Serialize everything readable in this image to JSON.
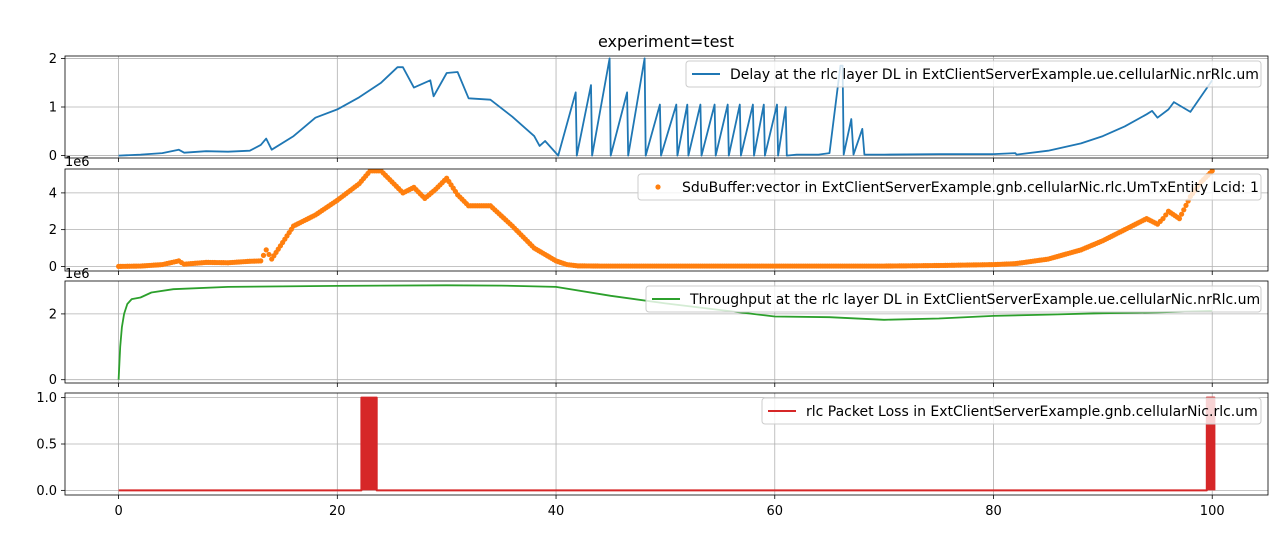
{
  "figure": {
    "title": "experiment=test"
  },
  "x_ticks": [
    "0",
    "20",
    "40",
    "60",
    "80",
    "100"
  ],
  "chart_data": [
    {
      "type": "line",
      "title": "experiment=test",
      "ylim": [
        -0.05,
        2.05
      ],
      "xlim": [
        -4.9,
        105.1
      ],
      "grid": true,
      "legend_position": "top-right",
      "y_ticks": [
        "0",
        "1",
        "2"
      ],
      "y_tick_values": [
        0,
        1,
        2
      ],
      "series": [
        {
          "name": "Delay at the rlc layer DL in ExtClientServerExample.ue.cellularNic.nrRlc.um",
          "color": "#1f77b4",
          "x": [
            0,
            2,
            4,
            5.5,
            6,
            8,
            10,
            12,
            13,
            13.5,
            14,
            16,
            18,
            20,
            22,
            24,
            25.5,
            26,
            27,
            28.5,
            28.8,
            30,
            31,
            32,
            34,
            36,
            38,
            38.5,
            39,
            40,
            40.2,
            41.8,
            41.9,
            43.2,
            43.3,
            44.9,
            45,
            46.5,
            46.6,
            48.1,
            48.2,
            49.5,
            49.6,
            51,
            51.1,
            52,
            52.1,
            53.2,
            53.3,
            54.5,
            54.6,
            55.7,
            55.8,
            56.8,
            56.9,
            58,
            58.1,
            59,
            59.1,
            60.2,
            60.3,
            61,
            61.1,
            62,
            64,
            65,
            66,
            66.2,
            66.3,
            67,
            67.2,
            68,
            68.2,
            70,
            75,
            80,
            82,
            82.1,
            85,
            88,
            90,
            92,
            94,
            94.5,
            95,
            96,
            96.5,
            98,
            100
          ],
          "y": [
            0,
            0.02,
            0.05,
            0.12,
            0.06,
            0.09,
            0.08,
            0.1,
            0.22,
            0.35,
            0.12,
            0.4,
            0.78,
            0.95,
            1.2,
            1.5,
            1.82,
            1.82,
            1.4,
            1.55,
            1.22,
            1.7,
            1.72,
            1.18,
            1.15,
            0.8,
            0.4,
            0.2,
            0.3,
            0.05,
            0,
            1.3,
            0,
            1.45,
            0,
            2.0,
            0,
            1.3,
            0,
            2.0,
            0,
            1.05,
            0,
            1.05,
            0,
            1.05,
            0,
            1.05,
            0,
            1.05,
            0,
            1.05,
            0,
            1.05,
            0,
            1.05,
            0,
            1.05,
            0,
            1.05,
            0,
            1.0,
            0,
            0.02,
            0.02,
            0.05,
            1.85,
            1.85,
            0.02,
            0.75,
            0.02,
            0.55,
            0.02,
            0.02,
            0.03,
            0.03,
            0.05,
            0.02,
            0.1,
            0.25,
            0.4,
            0.6,
            0.85,
            0.92,
            0.78,
            0.95,
            1.1,
            0.9,
            1.55
          ]
        }
      ]
    },
    {
      "type": "scatter",
      "offset_text": "1e6",
      "ylim": [
        -250000.0,
        5300000.0
      ],
      "xlim": [
        -4.9,
        105.1
      ],
      "grid": true,
      "legend_position": "top-right",
      "y_ticks": [
        "0",
        "2",
        "4"
      ],
      "y_tick_values": [
        0,
        2000000,
        4000000
      ],
      "series": [
        {
          "name": "SduBuffer:vector in ExtClientServerExample.gnb.cellularNic.rlc.UmTxEntity Lcid: 1",
          "color": "#ff7f0e",
          "x": [
            0,
            2,
            4,
            5.5,
            6,
            8,
            10,
            12,
            13,
            13.5,
            14,
            16,
            18,
            20,
            22,
            23,
            24,
            25,
            26,
            27,
            28,
            29,
            30,
            31,
            32,
            34,
            36,
            38,
            40,
            41,
            42,
            44,
            46,
            48,
            50,
            52,
            54,
            56,
            58,
            60,
            62,
            64,
            66,
            68,
            70,
            72,
            75,
            80,
            82,
            85,
            88,
            90,
            92,
            94,
            95,
            95.5,
            96,
            97,
            98,
            99,
            100
          ],
          "y": [
            0,
            20000,
            100000,
            300000,
            120000,
            220000,
            200000,
            280000,
            300000,
            900000,
            400000,
            2200000,
            2800000,
            3600000,
            4500000,
            5200000,
            5200000,
            4600000,
            4000000,
            4300000,
            3700000,
            4200000,
            4800000,
            3900000,
            3300000,
            3300000,
            2200000,
            1000000,
            300000,
            100000,
            30000,
            20000,
            20000,
            20000,
            20000,
            20000,
            20000,
            20000,
            20000,
            20000,
            20000,
            20000,
            20000,
            20000,
            20000,
            30000,
            50000,
            100000,
            150000,
            400000,
            900000,
            1400000,
            2000000,
            2600000,
            2300000,
            2600000,
            3000000,
            2600000,
            3800000,
            4600000,
            5200000
          ]
        }
      ]
    },
    {
      "type": "line",
      "offset_text": "1e6",
      "ylim": [
        -100000.0,
        3000000.0
      ],
      "xlim": [
        -4.9,
        105.1
      ],
      "grid": true,
      "legend_position": "top-right",
      "y_ticks": [
        "0",
        "2"
      ],
      "y_tick_values": [
        0,
        2000000
      ],
      "series": [
        {
          "name": "Throughput at the rlc layer DL in ExtClientServerExample.ue.cellularNic.nrRlc.um",
          "color": "#2ca02c",
          "x": [
            0,
            0.15,
            0.3,
            0.5,
            0.8,
            1.2,
            2,
            3,
            5,
            10,
            20,
            30,
            35,
            40,
            45,
            50,
            55,
            60,
            65,
            70,
            75,
            80,
            85,
            90,
            95,
            100
          ],
          "y": [
            0,
            1000000,
            1600000,
            2000000,
            2300000,
            2450000,
            2500000,
            2650000,
            2750000,
            2820000,
            2850000,
            2870000,
            2860000,
            2820000,
            2550000,
            2320000,
            2120000,
            1920000,
            1900000,
            1820000,
            1860000,
            1940000,
            1980000,
            2020000,
            2050000,
            2090000
          ]
        }
      ]
    },
    {
      "type": "line",
      "ylim": [
        -0.05,
        1.05
      ],
      "xlim": [
        -4.9,
        105.1
      ],
      "xlabel": "",
      "grid": true,
      "legend_position": "top-right",
      "y_ticks": [
        "0.0",
        "0.5",
        "1.0"
      ],
      "y_tick_values": [
        0,
        0.5,
        1.0
      ],
      "series": [
        {
          "name": "rlc Packet Loss in ExtClientServerExample.gnb.cellularNic.rlc.um",
          "color": "#d62728",
          "x": [
            0,
            22.2,
            22.2,
            23.6,
            23.6,
            99.5,
            99.5,
            100.2,
            100.2
          ],
          "y": [
            0,
            0,
            1,
            1,
            0,
            0,
            1,
            1,
            0
          ]
        }
      ]
    }
  ]
}
